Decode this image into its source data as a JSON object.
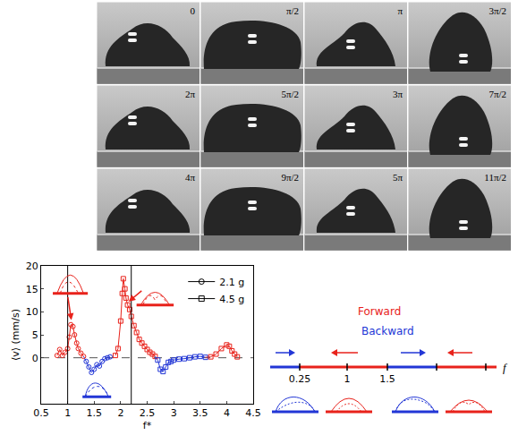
{
  "frames": {
    "labels": [
      "0",
      "π/2",
      "π",
      "3π/2",
      "2π",
      "5π/2",
      "3π",
      "7π/2",
      "4π",
      "9π/2",
      "5π",
      "11π/2"
    ]
  },
  "chart_data": {
    "type": "scatter",
    "x_label": "f*",
    "y_label": "⟨v⟩ (mm/s)",
    "xlim": [
      0.5,
      4.5
    ],
    "xticks": [
      0.5,
      1,
      1.5,
      2,
      2.5,
      3,
      3.5,
      4,
      4.5
    ],
    "ylim": [
      -10,
      20
    ],
    "yticks": [
      0,
      5,
      10,
      15,
      20
    ],
    "grid": false,
    "legend": "top-right",
    "reference_lines": {
      "x": [
        1,
        2.2
      ],
      "y": 0
    },
    "series": [
      {
        "name": "2.1 g",
        "color": "#000000",
        "marker": "circle",
        "x": [
          0.8,
          0.85,
          0.9,
          0.95,
          1.0,
          1.03,
          1.06,
          1.1,
          1.13,
          1.17,
          1.2,
          1.25,
          1.3,
          1.35,
          1.4,
          1.45,
          1.5,
          1.55,
          1.6,
          1.65,
          1.7,
          1.75,
          1.8
        ],
        "values": [
          0.5,
          1.8,
          0.5,
          1.2,
          2.0,
          4.5,
          7.2,
          6.8,
          5.0,
          3.2,
          2.0,
          1.0,
          0.3,
          -0.8,
          -2.0,
          -3.2,
          -2.5,
          -1.5,
          -1.8,
          -0.8,
          -0.2,
          0.0,
          0.2
        ],
        "colors": [
          "#e8221b",
          "#e8221b",
          "#e8221b",
          "#e8221b",
          "#e8221b",
          "#e8221b",
          "#e8221b",
          "#e8221b",
          "#e8221b",
          "#e8221b",
          "#e8221b",
          "#e8221b",
          "#e8221b",
          "#2236d6",
          "#2236d6",
          "#2236d6",
          "#2236d6",
          "#2236d6",
          "#2236d6",
          "#2236d6",
          "#2236d6",
          "#2236d6",
          "#2236d6"
        ]
      },
      {
        "name": "4.5 g",
        "color": "#000000",
        "marker": "square",
        "x": [
          1.9,
          1.95,
          2.0,
          2.03,
          2.05,
          2.08,
          2.1,
          2.13,
          2.17,
          2.2,
          2.25,
          2.3,
          2.35,
          2.4,
          2.45,
          2.5,
          2.55,
          2.6,
          2.65,
          2.7,
          2.75,
          2.8,
          2.85,
          2.9,
          2.95,
          3.0,
          3.1,
          3.2,
          3.3,
          3.4,
          3.5,
          3.6,
          3.7,
          3.8,
          3.9,
          4.0,
          4.05,
          4.1,
          4.15,
          4.2
        ],
        "values": [
          0.5,
          2,
          8,
          14,
          17.2,
          15,
          13,
          11.5,
          10.5,
          9,
          7,
          5.5,
          4,
          3.2,
          2.5,
          1.8,
          1.2,
          0.8,
          0.3,
          -0.5,
          -2.5,
          -3.0,
          -2.0,
          -1.0,
          -0.8,
          -0.5,
          -0.3,
          -0.2,
          0.0,
          0.2,
          0.3,
          0.1,
          0.2,
          0.8,
          2.0,
          2.8,
          2.5,
          1.5,
          0.8,
          0.2
        ],
        "colors": [
          "#e8221b",
          "#e8221b",
          "#e8221b",
          "#e8221b",
          "#e8221b",
          "#e8221b",
          "#e8221b",
          "#e8221b",
          "#e8221b",
          "#e8221b",
          "#e8221b",
          "#e8221b",
          "#e8221b",
          "#e8221b",
          "#e8221b",
          "#e8221b",
          "#e8221b",
          "#e8221b",
          "#e8221b",
          "#2236d6",
          "#2236d6",
          "#2236d6",
          "#2236d6",
          "#2236d6",
          "#2236d6",
          "#2236d6",
          "#2236d6",
          "#2236d6",
          "#2236d6",
          "#2236d6",
          "#2236d6",
          "#2236d6",
          "#e8221b",
          "#e8221b",
          "#e8221b",
          "#e8221b",
          "#e8221b",
          "#e8221b",
          "#e8221b",
          "#e8221b"
        ]
      }
    ]
  },
  "schematic": {
    "labels": {
      "forward": "Forward",
      "backward": "Backward"
    },
    "colors": {
      "forward": "#e8221b",
      "backward": "#2236d6"
    },
    "segments": [
      "backward",
      "forward",
      "backward",
      "forward"
    ],
    "tick_labels": [
      "0.25",
      "1",
      "1.5"
    ],
    "axis_label": "f"
  }
}
